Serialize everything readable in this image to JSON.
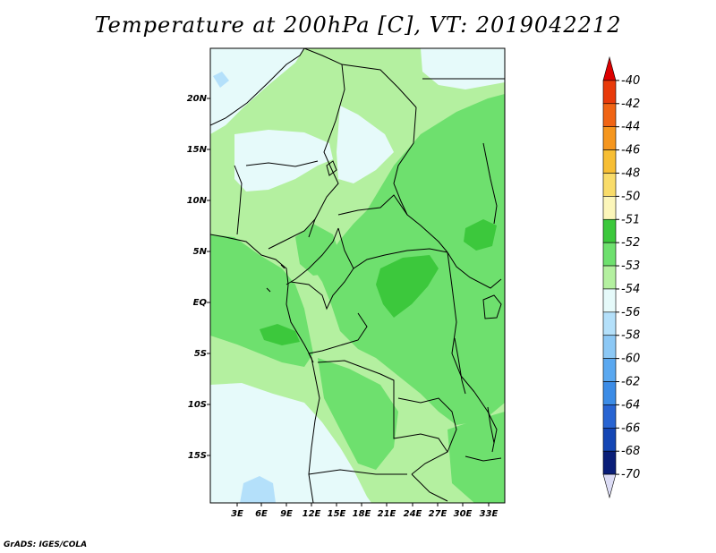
{
  "title": "Temperature at 200hPa [C], VT: 2019042212",
  "credit": "GrADS: IGES/COLA",
  "lat_labels": [
    "20N",
    "15N",
    "10N",
    "5N",
    "EQ",
    "5S",
    "10S",
    "15S"
  ],
  "lon_labels": [
    "3E",
    "6E",
    "9E",
    "12E",
    "15E",
    "18E",
    "21E",
    "24E",
    "27E",
    "30E",
    "33E"
  ],
  "colorbar": {
    "labels": [
      "-40",
      "-42",
      "-44",
      "-46",
      "-48",
      "-50",
      "-51",
      "-52",
      "-53",
      "-54",
      "-56",
      "-58",
      "-60",
      "-62",
      "-64",
      "-66",
      "-68",
      "-70"
    ],
    "colors": [
      "#dc0000",
      "#e83a0a",
      "#f06414",
      "#f5961e",
      "#f7be34",
      "#f9dc6a",
      "#fcf6ba",
      "#3cc83c",
      "#6ee06e",
      "#b4f0a0",
      "#e6fafa",
      "#b4e0fa",
      "#8cc8f5",
      "#5aa8f0",
      "#3c8ce6",
      "#2864d2",
      "#1446b4",
      "#0a1e78",
      "#dcdcf5"
    ]
  },
  "map": {
    "extent": {
      "lon_min": 0,
      "lon_max": 35,
      "lat_min": -20,
      "lat_max": 25
    },
    "background_color": "#b4f0a0"
  }
}
